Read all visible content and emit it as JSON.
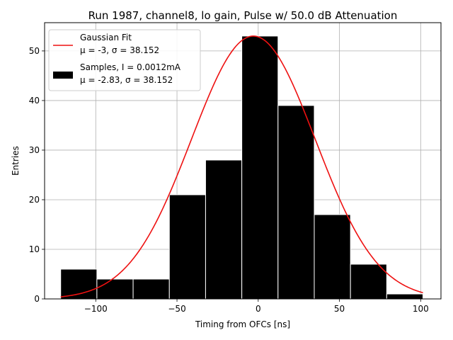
{
  "chart_data": {
    "type": "bar",
    "title": "Run 1987, channel8, lo gain, Pulse w/ 50.0 dB Attenuation",
    "xlabel": "Timing from OFCs [ns]",
    "ylabel": "Entries",
    "xlim": [
      -131.5,
      112.5
    ],
    "ylim": [
      0,
      55.7
    ],
    "xticks": [
      -100,
      -50,
      0,
      50,
      100
    ],
    "xtick_labels": [
      "−100",
      "−50",
      "0",
      "50",
      "100"
    ],
    "yticks": [
      0,
      10,
      20,
      30,
      40,
      50
    ],
    "ytick_labels": [
      "0",
      "10",
      "20",
      "30",
      "40",
      "50"
    ],
    "grid": true,
    "bin_edges": [
      -121.6,
      -99.3,
      -77.0,
      -54.7,
      -32.4,
      -10.1,
      12.2,
      34.5,
      56.8,
      79.1,
      101.4
    ],
    "values": [
      6,
      4,
      4,
      21,
      28,
      53,
      39,
      17,
      7,
      1
    ],
    "bar_color": "#000000",
    "bar_edge_color": "#ffffff",
    "fit": {
      "mu": -3,
      "sigma": 38.152,
      "amplitude": 53,
      "x_range": [
        -121.6,
        101.4
      ],
      "color": "#ee1111"
    },
    "legend": {
      "position": "top-left",
      "entries": [
        {
          "kind": "line",
          "label_line1": "Gaussian Fit",
          "label_line2": "μ = -3, σ = 38.152"
        },
        {
          "kind": "bar",
          "label_line1": "Samples, I = 0.0012mA",
          "label_line2": "μ = -2.83, σ = 38.152"
        }
      ]
    }
  }
}
